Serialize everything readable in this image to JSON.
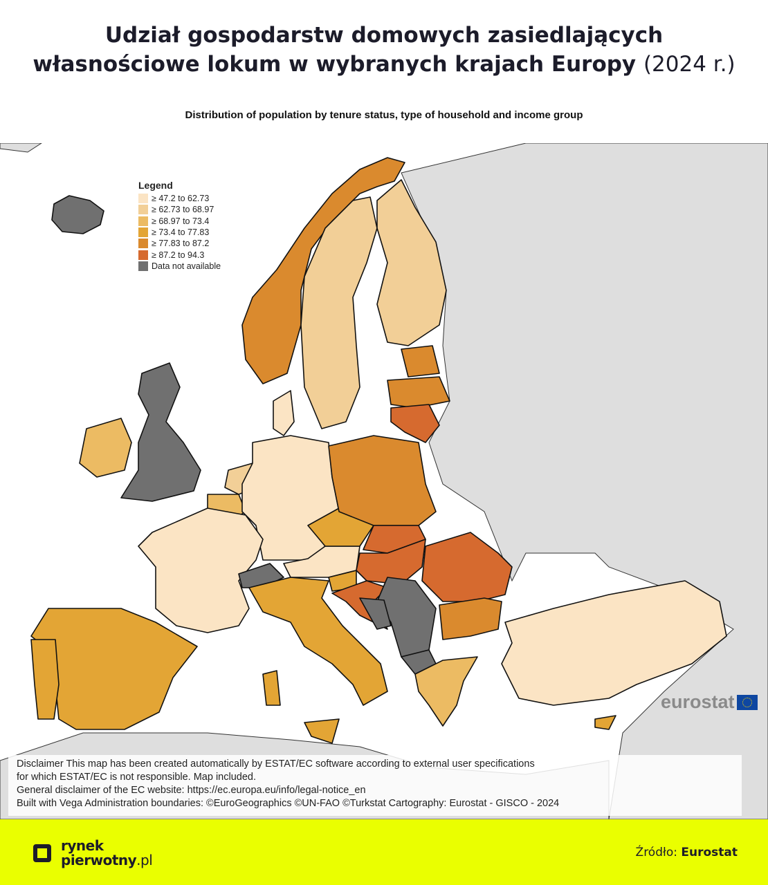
{
  "title": {
    "line1": "Udział gospodarstw domowych zasiedlających",
    "line2": "własnościowe lokum w wybranych krajach Europy",
    "year": "(2024 r.)"
  },
  "subtitle": "Distribution of population by tenure status, type of household and income group",
  "legend": {
    "title": "Legend",
    "classes": [
      {
        "label": "≥ 47.2 to 62.73",
        "color": "#fbe4c4"
      },
      {
        "label": "≥ 62.73 to 68.97",
        "color": "#f2cf97"
      },
      {
        "label": "≥ 68.97 to 73.4",
        "color": "#ecbb63"
      },
      {
        "label": "≥ 73.4 to 77.83",
        "color": "#e3a535"
      },
      {
        "label": "≥ 77.83 to 87.2",
        "color": "#da8a2e"
      },
      {
        "label": "≥ 87.2 to 94.3",
        "color": "#d66a2f"
      },
      {
        "label": "Data not available",
        "color": "#707070"
      }
    ]
  },
  "countries": {
    "IS": 6,
    "NO": 4,
    "SE": 1,
    "FI": 1,
    "EE": 4,
    "LV": 4,
    "LT": 5,
    "UK": 6,
    "IE": 2,
    "DK": 0,
    "NL": 1,
    "BE": 2,
    "DE": 0,
    "FR": 0,
    "ES": 3,
    "PT": 3,
    "IT": 3,
    "CH": 6,
    "AT": 0,
    "CZ": 3,
    "PL": 4,
    "SK": 5,
    "HU": 5,
    "SI": 3,
    "HR": 5,
    "RO": 5,
    "BG": 4,
    "RS": 6,
    "BA": 6,
    "MK": 6,
    "GR": 2,
    "TR": 0,
    "CY": 3
  },
  "eurostat_logo": "eurostat",
  "disclaimer": [
    "Disclaimer This map has been created automatically by ESTAT/EC software according to external user specifications",
    "for which ESTAT/EC is not responsible. Map included.",
    "General disclaimer of the EC website: https://ec.europa.eu/info/legal-notice_en",
    "Built with Vega Administration boundaries: ©EuroGeographics ©UN-FAO ©Turkstat Cartography: Eurostat - GISCO - 2024"
  ],
  "footer": {
    "brand_line1": "rynek",
    "brand_line2": "pierwotny",
    "brand_suffix": ".pl",
    "source_label": "Źródło:",
    "source_value": "Eurostat"
  }
}
